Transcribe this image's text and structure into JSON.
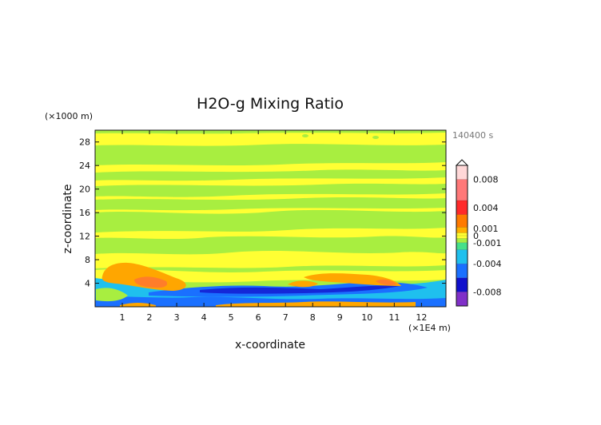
{
  "chart_data": {
    "type": "heatmap",
    "title": "H2O-g Mixing Ratio",
    "xlabel": "x-coordinate",
    "ylabel": "z-coordinate",
    "x_unit": "(×1E4 m)",
    "y_unit": "(×1000 m)",
    "time_label": "140400 s",
    "xlim": [
      0,
      12.9
    ],
    "ylim": [
      0,
      30
    ],
    "xticks": [
      1,
      2,
      3,
      4,
      5,
      6,
      7,
      8,
      9,
      10,
      11,
      12
    ],
    "yticks": [
      4,
      8,
      12,
      16,
      20,
      24,
      28
    ],
    "grid": false,
    "colorbar": {
      "labels": [
        "0.008",
        "0.004",
        "0.001",
        "0",
        "-0.001",
        "-0.004",
        "-0.008"
      ],
      "label_values": [
        0.008,
        0.004,
        0.001,
        0,
        -0.001,
        -0.004,
        -0.008
      ],
      "vmin": -0.01,
      "vmax": 0.01,
      "stops": [
        {
          "v": 0.01,
          "color": "#ffd8d8"
        },
        {
          "v": 0.008,
          "color": "#ff7878"
        },
        {
          "v": 0.005,
          "color": "#ff2a2a"
        },
        {
          "v": 0.003,
          "color": "#ff7a00"
        },
        {
          "v": 0.0012,
          "color": "#ffb000"
        },
        {
          "v": 0.0004,
          "color": "#ffff33"
        },
        {
          "v": 0.0,
          "color": "#ffff33"
        },
        {
          "v": -0.0004,
          "color": "#a8ee40"
        },
        {
          "v": -0.001,
          "color": "#46e08a"
        },
        {
          "v": -0.002,
          "color": "#1fc0ee"
        },
        {
          "v": -0.004,
          "color": "#1a70ff"
        },
        {
          "v": -0.006,
          "color": "#1010cc"
        },
        {
          "v": -0.008,
          "color": "#8030c8"
        },
        {
          "v": -0.01,
          "color": "#ff40c0"
        }
      ]
    },
    "field_colors": {
      "yellow": "#ffff33",
      "green": "#a8ee40",
      "orange": "#ffa600",
      "red_orange": "#ff7d2a",
      "cyan": "#1fc0ee",
      "blue": "#1a70ff",
      "deep_blue": "#1428d8"
    }
  }
}
